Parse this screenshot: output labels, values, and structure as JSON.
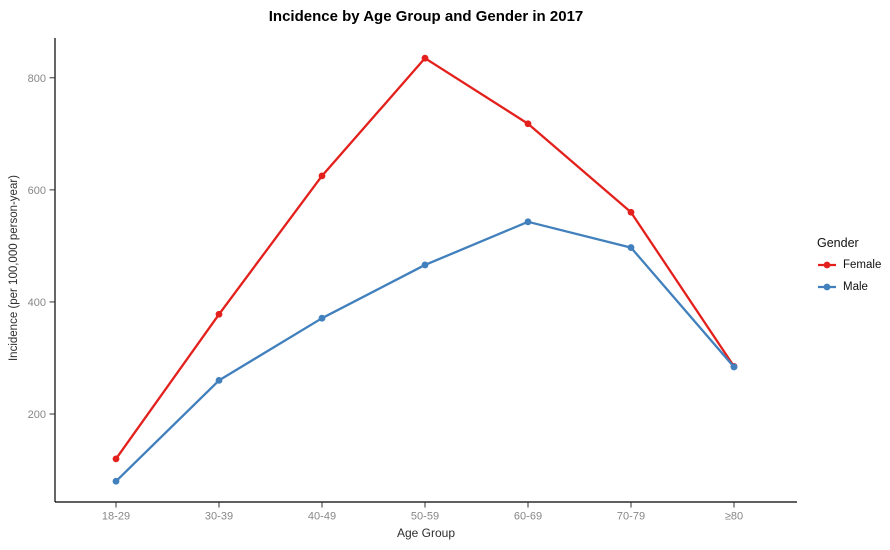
{
  "chart_data": {
    "type": "line",
    "title": "Incidence by Age Group and Gender in 2017",
    "xlabel": "Age Group",
    "ylabel": "Incidence (per 100,000 person-year)",
    "categories": [
      "18-29",
      "30-39",
      "40-49",
      "50-59",
      "60-69",
      "70-79",
      "≥80"
    ],
    "series": [
      {
        "name": "Female",
        "color": "#E3201C",
        "values": [
          120,
          378,
          625,
          835,
          718,
          560,
          285
        ]
      },
      {
        "name": "Male",
        "color": "#4180BC",
        "values": [
          80,
          260,
          371,
          466,
          543,
          497,
          284
        ]
      }
    ],
    "yticks": [
      200,
      400,
      600,
      800
    ],
    "ylim": [
      43,
      871
    ],
    "grid": false,
    "legend_title": "Gender",
    "legend_position": "right",
    "axis_color": "#000000",
    "tick_label_color": "#878787"
  }
}
